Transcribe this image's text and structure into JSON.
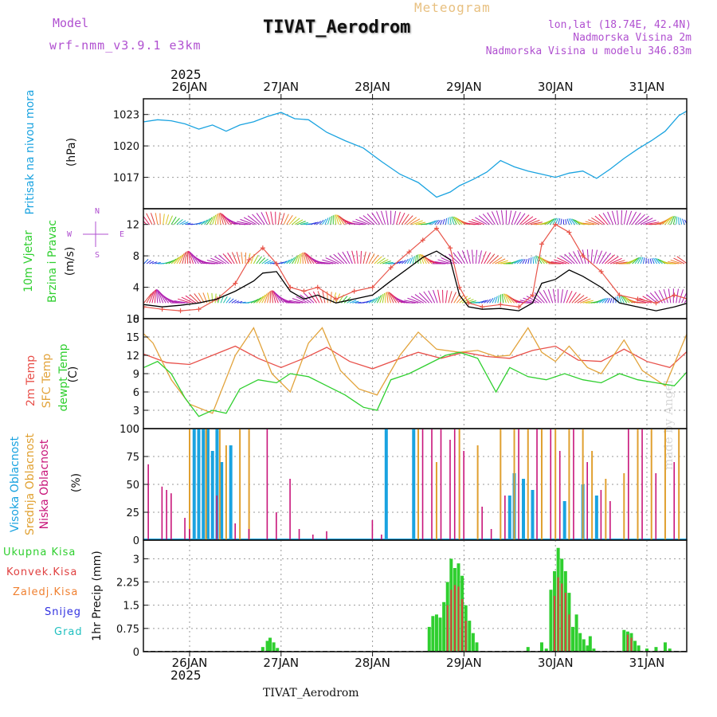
{
  "header": {
    "model_label": "Model",
    "model_name": "wrf-nmm_v3.9.1 e3km",
    "meteogram": "Meteogram",
    "title": "TIVAT_Aerodrom",
    "lonlat": "lon,lat (18.74E, 42.4N)",
    "elev": "Nadmorska Visina 2m",
    "model_elev": "Nadmorska Visina u modelu 346.83m",
    "year_top": "2025",
    "year_bottom": "2025",
    "footer": "TIVAT_Aerodrom",
    "credit": "made by Angel"
  },
  "colors": {
    "pressure": "#1aa3e0",
    "wind_obs": "#000000",
    "wind_gust": "#e8554a",
    "t2m": "#e8504a",
    "tsfc": "#e2a33b",
    "dewpt": "#2fcf2f",
    "cloud_high": "#1aa3e0",
    "cloud_mid": "#e0a030",
    "cloud_low": "#c8157a",
    "precip_total": "#2fcf2f",
    "precip_conv": "#e04040",
    "precip_frozen": "#f08030",
    "snow": "#3030e0",
    "hail": "#20c0c0",
    "label_purple": "#b050d0"
  },
  "chart_data": {
    "type": "meteogram",
    "days": [
      "26JAN",
      "27JAN",
      "28JAN",
      "29JAN",
      "30JAN",
      "31JAN"
    ],
    "x_range_days": [
      -0.5,
      5.45
    ],
    "panels": [
      {
        "id": "pressure",
        "ylabel": "Pritisak na nivou mora",
        "unit": "(hPa)",
        "ylim": [
          1014,
          1024.5
        ],
        "yticks": [
          1017,
          1020,
          1023
        ],
        "series": [
          {
            "name": "MSLP",
            "x": [
              -0.5,
              -0.35,
              -0.2,
              -0.05,
              0.1,
              0.25,
              0.4,
              0.55,
              0.7,
              0.85,
              1.0,
              1.15,
              1.3,
              1.5,
              1.7,
              1.9,
              2.1,
              2.3,
              2.5,
              2.7,
              2.85,
              2.95,
              3.1,
              3.25,
              3.4,
              3.55,
              3.7,
              3.85,
              4.0,
              4.15,
              4.3,
              4.45,
              4.6,
              4.75,
              4.9,
              5.05,
              5.2,
              5.35,
              5.45
            ],
            "y": [
              1022.3,
              1022.5,
              1022.4,
              1022.1,
              1021.6,
              1022.0,
              1021.4,
              1022.0,
              1022.3,
              1022.8,
              1023.2,
              1022.6,
              1022.5,
              1021.3,
              1020.5,
              1019.8,
              1018.5,
              1017.3,
              1016.5,
              1015.1,
              1015.6,
              1016.2,
              1016.8,
              1017.5,
              1018.6,
              1018.0,
              1017.6,
              1017.3,
              1017.0,
              1017.4,
              1017.6,
              1016.9,
              1017.8,
              1018.8,
              1019.7,
              1020.5,
              1021.4,
              1022.9,
              1023.4
            ]
          }
        ]
      },
      {
        "id": "wind",
        "ylabel": "10m Vjetar",
        "ylabel2": "Brzina i Pravac",
        "unit": "(m/s)",
        "compass": {
          "n": "N",
          "e": "E",
          "w": "W",
          "s": "S"
        },
        "ylim": [
          0,
          14
        ],
        "yticks": [
          0,
          4,
          8,
          12
        ],
        "series": [
          {
            "name": "speed",
            "x": [
              -0.5,
              -0.3,
              -0.1,
              0.1,
              0.3,
              0.5,
              0.7,
              0.8,
              0.95,
              1.1,
              1.25,
              1.4,
              1.6,
              1.8,
              2.0,
              2.2,
              2.4,
              2.55,
              2.7,
              2.85,
              2.95,
              3.05,
              3.2,
              3.4,
              3.6,
              3.75,
              3.85,
              4.0,
              4.15,
              4.3,
              4.5,
              4.7,
              4.9,
              5.1,
              5.3,
              5.45
            ],
            "y": [
              1.8,
              1.5,
              1.7,
              2.0,
              2.5,
              3.5,
              4.8,
              5.8,
              6.0,
              3.5,
              2.5,
              3.0,
              2.0,
              2.5,
              3.0,
              4.8,
              6.5,
              7.8,
              8.6,
              7.5,
              3.0,
              1.5,
              1.2,
              1.3,
              1.0,
              2.0,
              4.5,
              5.0,
              6.2,
              5.4,
              4.0,
              2.0,
              1.5,
              1.0,
              1.5,
              2.0
            ]
          },
          {
            "name": "gust",
            "x": [
              -0.5,
              -0.3,
              -0.1,
              0.1,
              0.3,
              0.5,
              0.65,
              0.8,
              0.95,
              1.1,
              1.25,
              1.4,
              1.6,
              1.8,
              2.0,
              2.2,
              2.4,
              2.55,
              2.7,
              2.85,
              2.95,
              3.05,
              3.2,
              3.4,
              3.6,
              3.75,
              3.85,
              4.0,
              4.15,
              4.3,
              4.5,
              4.7,
              4.9,
              5.1,
              5.3,
              5.45
            ],
            "y": [
              1.5,
              1.2,
              1.0,
              1.2,
              2.5,
              4.5,
              7.5,
              9.0,
              7.0,
              4.0,
              3.5,
              4.0,
              2.5,
              3.5,
              4.0,
              6.5,
              8.5,
              10.0,
              11.5,
              9.0,
              4.0,
              2.0,
              1.5,
              1.8,
              1.5,
              3.0,
              9.5,
              12.0,
              11.0,
              8.0,
              6.0,
              3.0,
              2.5,
              2.0,
              3.0,
              2.5
            ]
          }
        ]
      },
      {
        "id": "temp",
        "ylabel": "2m Temp",
        "ylabel2": "SFC Temp",
        "ylabel3": "dewpt Temp",
        "unit": "(C)",
        "ylim": [
          0,
          18
        ],
        "yticks": [
          0,
          3,
          6,
          9,
          12,
          15,
          18
        ],
        "series": [
          {
            "name": "2m Temp",
            "x": [
              -0.5,
              -0.25,
              0.0,
              0.25,
              0.5,
              0.75,
              1.0,
              1.25,
              1.5,
              1.75,
              2.0,
              2.25,
              2.5,
              2.75,
              3.0,
              3.25,
              3.5,
              3.75,
              4.0,
              4.25,
              4.5,
              4.75,
              5.0,
              5.25,
              5.45
            ],
            "y": [
              12.2,
              10.8,
              10.5,
              12.0,
              13.5,
              11.5,
              10.0,
              11.5,
              13.3,
              11.0,
              9.8,
              11.2,
              12.5,
              11.5,
              12.5,
              11.8,
              11.5,
              12.8,
              13.5,
              11.2,
              11.0,
              13.0,
              11.0,
              10.0,
              12.8
            ]
          },
          {
            "name": "SFC Temp",
            "x": [
              -0.5,
              -0.4,
              -0.2,
              0.0,
              0.25,
              0.5,
              0.7,
              0.9,
              1.1,
              1.3,
              1.45,
              1.65,
              1.85,
              2.05,
              2.3,
              2.5,
              2.7,
              2.95,
              3.15,
              3.35,
              3.5,
              3.7,
              3.85,
              4.0,
              4.15,
              4.35,
              4.5,
              4.75,
              4.95,
              5.2,
              5.45
            ],
            "y": [
              15.5,
              14.0,
              8.0,
              4.0,
              2.5,
              12.0,
              16.5,
              9.0,
              6.0,
              14.0,
              16.5,
              9.5,
              6.5,
              5.5,
              12.0,
              15.8,
              13.0,
              12.5,
              12.8,
              11.8,
              12.0,
              16.5,
              12.5,
              11.0,
              13.5,
              10.0,
              9.0,
              14.5,
              9.5,
              7.0,
              16.0
            ]
          },
          {
            "name": "dewpt Temp",
            "x": [
              -0.5,
              -0.35,
              -0.2,
              -0.05,
              0.1,
              0.25,
              0.4,
              0.55,
              0.75,
              0.95,
              1.1,
              1.3,
              1.5,
              1.7,
              1.9,
              2.05,
              2.2,
              2.4,
              2.6,
              2.8,
              2.95,
              3.15,
              3.35,
              3.5,
              3.7,
              3.9,
              4.1,
              4.3,
              4.5,
              4.7,
              4.9,
              5.1,
              5.3,
              5.45
            ],
            "y": [
              10.0,
              11.0,
              9.0,
              5.0,
              2.0,
              3.0,
              2.5,
              6.5,
              8.0,
              7.5,
              9.0,
              8.5,
              7.0,
              5.5,
              3.5,
              3.0,
              8.0,
              9.0,
              10.5,
              12.0,
              12.5,
              11.5,
              6.0,
              10.0,
              8.5,
              8.0,
              9.0,
              8.0,
              7.5,
              9.0,
              8.0,
              7.5,
              7.0,
              9.5
            ]
          }
        ]
      },
      {
        "id": "cloud",
        "ylabel": "Visoka Oblacnost",
        "ylabel2": "Srednja Oblacnost",
        "ylabel3": "Niska Oblacnost",
        "unit": "(%)",
        "ylim": [
          0,
          100
        ],
        "yticks": [
          0,
          25,
          50,
          75,
          100
        ],
        "high": [
          [
            0.05,
            100
          ],
          [
            0.1,
            100
          ],
          [
            0.15,
            100
          ],
          [
            0.2,
            100
          ],
          [
            0.25,
            80
          ],
          [
            0.3,
            100
          ],
          [
            0.35,
            70
          ],
          [
            0.45,
            85
          ],
          [
            2.15,
            100
          ],
          [
            2.45,
            100
          ],
          [
            3.5,
            40
          ],
          [
            3.55,
            60
          ],
          [
            3.65,
            55
          ],
          [
            3.75,
            45
          ],
          [
            4.1,
            35
          ],
          [
            4.3,
            50
          ],
          [
            4.45,
            40
          ]
        ],
        "mid": [
          [
            0.0,
            100
          ],
          [
            0.18,
            100
          ],
          [
            0.33,
            100
          ],
          [
            0.4,
            85
          ],
          [
            0.55,
            100
          ],
          [
            0.65,
            100
          ],
          [
            2.5,
            100
          ],
          [
            2.7,
            70
          ],
          [
            2.95,
            100
          ],
          [
            3.15,
            85
          ],
          [
            3.4,
            100
          ],
          [
            3.55,
            100
          ],
          [
            3.7,
            100
          ],
          [
            3.85,
            100
          ],
          [
            4.0,
            100
          ],
          [
            4.15,
            100
          ],
          [
            4.3,
            100
          ],
          [
            4.4,
            80
          ],
          [
            4.55,
            55
          ],
          [
            4.75,
            60
          ],
          [
            4.9,
            100
          ],
          [
            5.05,
            100
          ],
          [
            5.2,
            100
          ],
          [
            5.35,
            100
          ],
          [
            5.45,
            100
          ]
        ],
        "low": [
          [
            -0.45,
            68
          ],
          [
            -0.3,
            48
          ],
          [
            -0.25,
            45
          ],
          [
            -0.2,
            42
          ],
          [
            -0.05,
            20
          ],
          [
            0.0,
            10
          ],
          [
            0.3,
            40
          ],
          [
            0.5,
            15
          ],
          [
            0.65,
            10
          ],
          [
            0.85,
            100
          ],
          [
            0.95,
            25
          ],
          [
            1.1,
            55
          ],
          [
            1.2,
            10
          ],
          [
            1.35,
            5
          ],
          [
            1.5,
            8
          ],
          [
            2.0,
            18
          ],
          [
            2.1,
            5
          ],
          [
            2.55,
            100
          ],
          [
            2.65,
            100
          ],
          [
            2.75,
            100
          ],
          [
            2.85,
            90
          ],
          [
            2.9,
            100
          ],
          [
            3.0,
            80
          ],
          [
            3.2,
            30
          ],
          [
            3.3,
            10
          ],
          [
            3.45,
            40
          ],
          [
            3.6,
            100
          ],
          [
            3.8,
            100
          ],
          [
            3.95,
            100
          ],
          [
            4.05,
            80
          ],
          [
            4.2,
            100
          ],
          [
            4.35,
            70
          ],
          [
            4.5,
            45
          ],
          [
            4.6,
            35
          ],
          [
            4.8,
            100
          ],
          [
            4.95,
            100
          ],
          [
            5.1,
            60
          ],
          [
            5.3,
            70
          ],
          [
            5.45,
            55
          ]
        ]
      },
      {
        "id": "precip",
        "ylabel": "1hr Precip (mm)",
        "legend": [
          "Ukupna Kisa",
          "Konvek.Kisa",
          "Zaledj.Kisa",
          "Snijeg",
          "Grad"
        ],
        "ylim": [
          0,
          3.6
        ],
        "yticks": [
          0,
          0.75,
          1.5,
          2.25,
          3
        ],
        "ytick_labels": [
          "0",
          "0.75",
          "1.5",
          "2.25",
          "3"
        ],
        "total": [
          [
            0.8,
            0.15
          ],
          [
            0.85,
            0.35
          ],
          [
            0.88,
            0.45
          ],
          [
            0.92,
            0.3
          ],
          [
            0.96,
            0.12
          ],
          [
            2.62,
            0.8
          ],
          [
            2.66,
            1.15
          ],
          [
            2.7,
            1.2
          ],
          [
            2.74,
            1.1
          ],
          [
            2.78,
            1.6
          ],
          [
            2.82,
            2.25
          ],
          [
            2.86,
            3.0
          ],
          [
            2.9,
            2.7
          ],
          [
            2.94,
            2.85
          ],
          [
            2.98,
            2.45
          ],
          [
            3.02,
            1.5
          ],
          [
            3.06,
            1.0
          ],
          [
            3.1,
            0.6
          ],
          [
            3.14,
            0.3
          ],
          [
            3.7,
            0.15
          ],
          [
            3.85,
            0.3
          ],
          [
            3.9,
            0.1
          ],
          [
            3.95,
            2.0
          ],
          [
            3.99,
            2.6
          ],
          [
            4.03,
            3.35
          ],
          [
            4.07,
            3.0
          ],
          [
            4.11,
            2.6
          ],
          [
            4.15,
            1.9
          ],
          [
            4.19,
            0.8
          ],
          [
            4.23,
            1.2
          ],
          [
            4.27,
            0.6
          ],
          [
            4.31,
            0.4
          ],
          [
            4.35,
            0.2
          ],
          [
            4.38,
            0.5
          ],
          [
            4.42,
            0.1
          ],
          [
            4.75,
            0.7
          ],
          [
            4.79,
            0.65
          ],
          [
            4.83,
            0.6
          ],
          [
            4.87,
            0.35
          ],
          [
            4.91,
            0.2
          ],
          [
            5.0,
            0.1
          ],
          [
            5.1,
            0.15
          ],
          [
            5.2,
            0.3
          ],
          [
            5.25,
            0.1
          ]
        ],
        "conv": [
          [
            2.82,
            1.5
          ],
          [
            2.86,
            2.0
          ],
          [
            2.9,
            2.15
          ],
          [
            2.94,
            2.1
          ],
          [
            2.98,
            1.7
          ],
          [
            3.02,
            1.0
          ],
          [
            3.99,
            1.8
          ],
          [
            4.03,
            2.4
          ],
          [
            4.07,
            2.2
          ],
          [
            4.11,
            1.9
          ],
          [
            4.15,
            1.2
          ],
          [
            4.79,
            0.55
          ],
          [
            4.83,
            0.45
          ]
        ]
      }
    ]
  }
}
